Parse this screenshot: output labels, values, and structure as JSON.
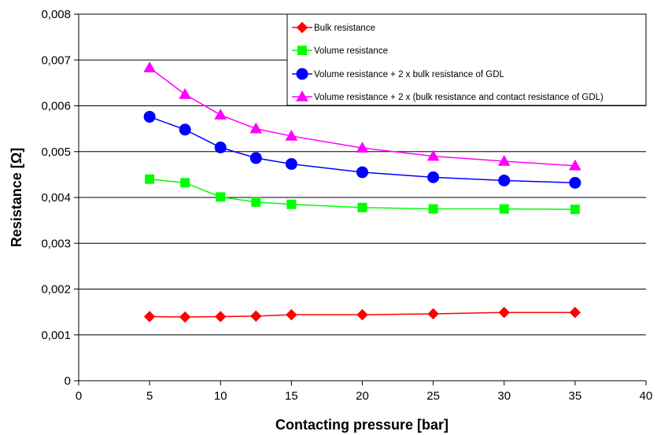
{
  "chart_data": {
    "type": "line",
    "title": "",
    "xlabel": "Contacting pressure [bar]",
    "ylabel": "Resistance [Ω]",
    "xlim": [
      0,
      40
    ],
    "ylim": [
      0,
      0.008
    ],
    "x_ticks": [
      0,
      5,
      10,
      15,
      20,
      25,
      30,
      35,
      40
    ],
    "x_tick_labels": [
      "0",
      "5",
      "10",
      "15",
      "20",
      "25",
      "30",
      "35",
      "40"
    ],
    "y_ticks": [
      0,
      0.001,
      0.002,
      0.003,
      0.004,
      0.005,
      0.006,
      0.007,
      0.008
    ],
    "y_tick_labels": [
      "0",
      "0,001",
      "0,002",
      "0,003",
      "0,004",
      "0,005",
      "0,006",
      "0,007",
      "0,008"
    ],
    "grid": "horizontal",
    "legend_position": "top-right",
    "x": [
      5,
      7.5,
      10,
      12.5,
      15,
      20,
      25,
      30,
      35
    ],
    "series": [
      {
        "name": "Bulk resistance",
        "color": "#ff0000",
        "marker": "diamond",
        "values": [
          0.0014,
          0.00139,
          0.0014,
          0.00141,
          0.00144,
          0.00144,
          0.00146,
          0.00149,
          0.00149
        ]
      },
      {
        "name": "Volume resistance",
        "color": "#00ff00",
        "marker": "square",
        "values": [
          0.0044,
          0.00432,
          0.00401,
          0.0039,
          0.00385,
          0.00378,
          0.00375,
          0.00375,
          0.00374
        ]
      },
      {
        "name": "Volume resistance + 2 x bulk resistance of GDL",
        "color": "#0000ff",
        "marker": "circle",
        "values": [
          0.00576,
          0.00548,
          0.00509,
          0.00486,
          0.00473,
          0.00455,
          0.00444,
          0.00437,
          0.00432
        ]
      },
      {
        "name": "Volume resistance + 2 x (bulk resistance and contact resistance of GDL)",
        "color": "#ff00ff",
        "marker": "triangle",
        "values": [
          0.00683,
          0.00625,
          0.0058,
          0.0055,
          0.00534,
          0.00508,
          0.0049,
          0.00479,
          0.00469
        ]
      }
    ]
  }
}
